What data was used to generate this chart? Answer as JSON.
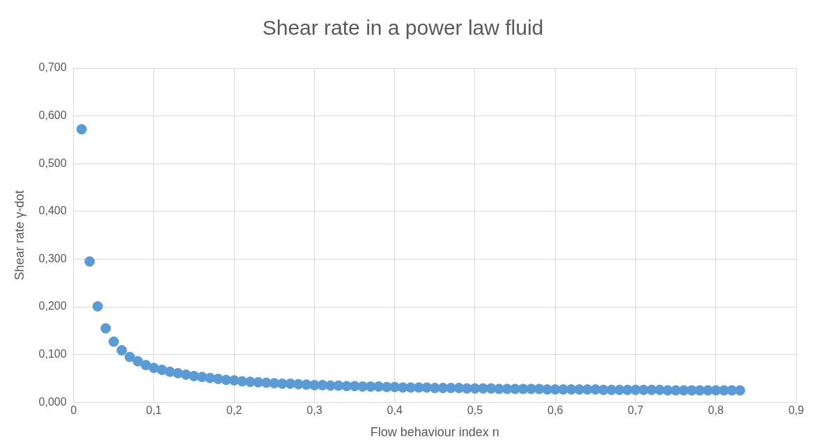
{
  "chart_data": {
    "type": "scatter",
    "title": "Shear rate in a power law fluid",
    "xlabel": "Flow behaviour index n",
    "ylabel": "Shear rate γ-dot",
    "x": [
      0.01,
      0.02,
      0.03,
      0.04,
      0.05,
      0.06,
      0.07,
      0.08,
      0.09,
      0.1,
      0.11,
      0.12,
      0.13,
      0.14,
      0.15,
      0.16,
      0.17,
      0.18,
      0.19,
      0.2,
      0.21,
      0.22,
      0.23,
      0.24,
      0.25,
      0.26,
      0.27,
      0.28,
      0.29,
      0.3,
      0.31,
      0.32,
      0.33,
      0.34,
      0.35,
      0.36,
      0.37,
      0.38,
      0.39,
      0.4,
      0.41,
      0.42,
      0.43,
      0.44,
      0.45,
      0.46,
      0.47,
      0.48,
      0.49,
      0.5,
      0.51,
      0.52,
      0.53,
      0.54,
      0.55,
      0.56,
      0.57,
      0.58,
      0.59,
      0.6,
      0.61,
      0.62,
      0.63,
      0.64,
      0.65,
      0.66,
      0.67,
      0.68,
      0.69,
      0.7,
      0.71,
      0.72,
      0.73,
      0.74,
      0.75,
      0.76,
      0.77,
      0.78,
      0.79,
      0.8,
      0.81,
      0.82,
      0.83
    ],
    "series": [
      {
        "color": "#5b9bd5",
        "values": [
          0.572,
          0.295,
          0.201,
          0.155,
          0.127,
          0.109,
          0.095,
          0.086,
          0.078,
          0.072,
          0.068,
          0.064,
          0.061,
          0.058,
          0.055,
          0.053,
          0.051,
          0.049,
          0.047,
          0.046,
          0.044,
          0.043,
          0.042,
          0.041,
          0.04,
          0.039,
          0.039,
          0.038,
          0.037,
          0.036,
          0.036,
          0.035,
          0.035,
          0.034,
          0.034,
          0.033,
          0.033,
          0.033,
          0.032,
          0.032,
          0.031,
          0.031,
          0.031,
          0.031,
          0.03,
          0.03,
          0.03,
          0.03,
          0.029,
          0.029,
          0.029,
          0.029,
          0.028,
          0.028,
          0.028,
          0.028,
          0.028,
          0.028,
          0.027,
          0.027,
          0.027,
          0.027,
          0.027,
          0.027,
          0.027,
          0.026,
          0.026,
          0.026,
          0.026,
          0.026,
          0.026,
          0.026,
          0.026,
          0.025,
          0.025,
          0.025,
          0.025,
          0.025,
          0.025,
          0.025,
          0.025,
          0.025,
          0.025
        ]
      }
    ],
    "xlim": [
      0,
      0.9
    ],
    "xticks": [
      0,
      {
        "value": 0.1,
        "label": "0,1"
      },
      {
        "value": 0.2,
        "label": "0,2"
      },
      {
        "value": 0.3,
        "label": "0,3"
      },
      {
        "value": 0.4,
        "label": "0,4"
      },
      {
        "value": 0.5,
        "label": "0,5"
      },
      {
        "value": 0.6,
        "label": "0,6"
      },
      {
        "value": 0.7,
        "label": "0,7"
      },
      {
        "value": 0.8,
        "label": "0,8"
      },
      {
        "value": 0.9,
        "label": "0,9"
      }
    ],
    "ylim": [
      0,
      0.7
    ],
    "yticks": [
      {
        "value": 0,
        "label": "0,000"
      },
      {
        "value": 0.1,
        "label": "0,100"
      },
      {
        "value": 0.2,
        "label": "0,200"
      },
      {
        "value": 0.3,
        "label": "0,300"
      },
      {
        "value": 0.4,
        "label": "0,400"
      },
      {
        "value": 0.5,
        "label": "0,500"
      },
      {
        "value": 0.6,
        "label": "0,600"
      },
      {
        "value": 0.7,
        "label": "0,700"
      }
    ],
    "grid": true,
    "legend": false,
    "marker": "circle"
  }
}
